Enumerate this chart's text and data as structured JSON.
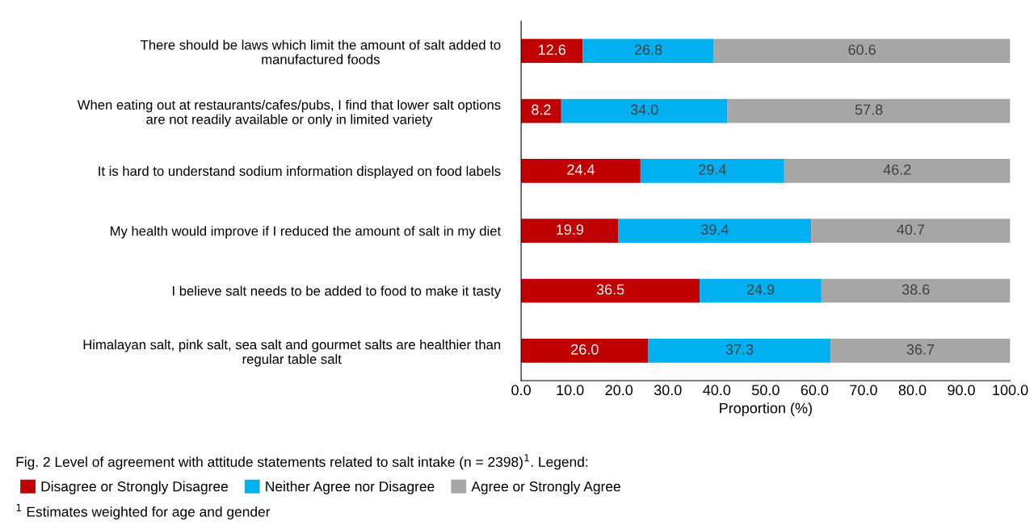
{
  "chart_data": {
    "type": "bar",
    "orientation": "horizontal",
    "stacked": true,
    "categories": [
      "There should be laws which limit the amount of salt added to\nmanufactured foods",
      "When eating out at restaurants/cafes/pubs, I find that lower salt options\nare not readily available or only in limited variety",
      "It is hard to understand sodium information displayed on food labels",
      "My health would improve if I reduced the amount of salt in my diet",
      "I believe salt needs to be added to food to make it tasty",
      "Himalayan salt, pink salt, sea salt and gourmet salts are healthier than\nregular table salt"
    ],
    "series": [
      {
        "name": "Disagree or Strongly Disagree",
        "color": "#c00000",
        "values": [
          12.6,
          8.2,
          24.4,
          19.9,
          36.5,
          26.0
        ],
        "value_labels": [
          "12.6",
          "8.2",
          "24.4",
          "19.9",
          "36.5",
          "26.0"
        ]
      },
      {
        "name": "Neither Agree nor Disagree",
        "color": "#00b0f0",
        "values": [
          26.8,
          34.0,
          29.4,
          39.4,
          24.9,
          37.3
        ],
        "value_labels": [
          "26.8",
          "34.0",
          "29.4",
          "39.4",
          "24.9",
          "37.3"
        ]
      },
      {
        "name": "Agree or Strongly Agree",
        "color": "#a6a6a6",
        "values": [
          60.6,
          57.8,
          46.2,
          40.7,
          38.6,
          36.7
        ],
        "value_labels": [
          "60.6",
          "57.8",
          "46.2",
          "40.7",
          "38.6",
          "36.7"
        ]
      }
    ],
    "xlabel": "Proportion (%)",
    "xlim": [
      0,
      100
    ],
    "xticks": [
      {
        "value": 0,
        "label": "0.0"
      },
      {
        "value": 10,
        "label": "10.0"
      },
      {
        "value": 20,
        "label": "20.0"
      },
      {
        "value": 30,
        "label": "30.0"
      },
      {
        "value": 40,
        "label": "40.0"
      },
      {
        "value": 50,
        "label": "50.0"
      },
      {
        "value": 60,
        "label": "60.0"
      },
      {
        "value": 70,
        "label": "70.0"
      },
      {
        "value": 80,
        "label": "80.0"
      },
      {
        "value": 90,
        "label": "90.0"
      },
      {
        "value": 100,
        "label": "100.0"
      }
    ],
    "grid": false,
    "legend": "bottom",
    "annotations": [
      "Fig. 2 Level of agreement with attitude statements related to salt intake (n = 2398)$^{1}$. Legend:",
      "$^{1}$ Estimates weighted for age and gender"
    ]
  }
}
